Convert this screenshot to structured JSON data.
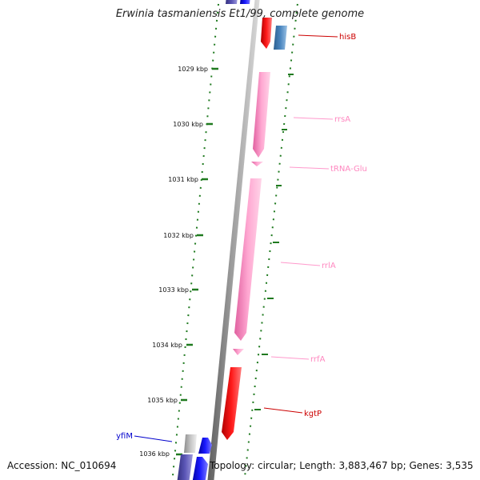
{
  "title": "Erwinia tasmaniensis Et1/99, complete genome",
  "footer": {
    "accession": "Accession: NC_010694",
    "summary": "Topology: circular; Length: 3,883,467 bp; Genes: 3,535"
  },
  "colors": {
    "backbone": "#8a8a8a",
    "tick": "#1f7a1f",
    "cds_red": "#ee1111",
    "cds_blue": "#1a1aee",
    "cds_steel": "#4a86c0",
    "cds_navy": "#5a55b5",
    "cds_gray": "#b5b5b5",
    "rna_pink": "#ff99cc"
  },
  "ticks": [
    {
      "label": "1029 kbp"
    },
    {
      "label": "1030 kbp"
    },
    {
      "label": "1031 kbp"
    },
    {
      "label": "1032 kbp"
    },
    {
      "label": "1033 kbp"
    },
    {
      "label": "1034 kbp"
    },
    {
      "label": "1035 kbp"
    },
    {
      "label": "1036 kbp"
    }
  ],
  "features": [
    {
      "name": "hisB",
      "type": "CDS",
      "color": "#ee1111"
    },
    {
      "name": "rrsA",
      "type": "rRNA",
      "color": "#ff99cc"
    },
    {
      "name": "tRNA-Glu",
      "type": "tRNA",
      "color": "#ff99cc"
    },
    {
      "name": "rrlA",
      "type": "rRNA",
      "color": "#ff99cc"
    },
    {
      "name": "rrfA",
      "type": "rRNA",
      "color": "#ff99cc"
    },
    {
      "name": "kgtP",
      "type": "CDS",
      "color": "#ee1111"
    },
    {
      "name": "yfiM",
      "type": "CDS",
      "color": "#1a1aee"
    }
  ]
}
